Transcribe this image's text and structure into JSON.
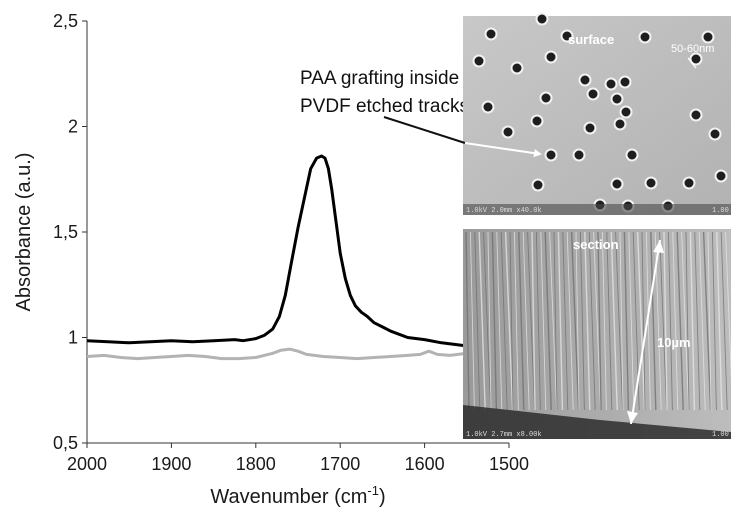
{
  "chart_data": {
    "type": "line",
    "xlabel": "Wavenumber (cm",
    "xlabel_sup": "-1",
    "xlabel_close": ")",
    "ylabel": "Absorbance (a.u.)",
    "xlim": [
      2000,
      1500
    ],
    "ylim": [
      0.5,
      2.5
    ],
    "x_ticks": [
      2000,
      1900,
      1800,
      1700,
      1600,
      1500
    ],
    "x_tick_labels": [
      "2000",
      "1900",
      "1800",
      "1700",
      "1600",
      "1500"
    ],
    "y_ticks": [
      0.5,
      1.0,
      1.5,
      2.0,
      2.5
    ],
    "y_tick_labels": [
      "0,5",
      "1",
      "1,5",
      "2",
      "2,5"
    ],
    "grid": false,
    "series": [
      {
        "color": "#000000",
        "x": [
          2000,
          1975,
          1950,
          1925,
          1900,
          1875,
          1850,
          1825,
          1815,
          1800,
          1790,
          1780,
          1772,
          1765,
          1758,
          1750,
          1742,
          1735,
          1728,
          1722,
          1718,
          1714,
          1710,
          1705,
          1700,
          1694,
          1688,
          1682,
          1675,
          1668,
          1660,
          1650,
          1640,
          1620,
          1600,
          1580,
          1560,
          1540,
          1520,
          1500
        ],
        "y": [
          0.985,
          0.98,
          0.975,
          0.98,
          0.985,
          0.98,
          0.985,
          0.99,
          0.985,
          0.995,
          1.01,
          1.04,
          1.1,
          1.2,
          1.35,
          1.52,
          1.67,
          1.8,
          1.85,
          1.86,
          1.85,
          1.8,
          1.7,
          1.55,
          1.4,
          1.28,
          1.2,
          1.15,
          1.12,
          1.1,
          1.07,
          1.05,
          1.03,
          1.0,
          0.99,
          0.975,
          0.965,
          0.955,
          0.96,
          0.98
        ]
      },
      {
        "color": "#b3b3b3",
        "x": [
          2000,
          1980,
          1960,
          1940,
          1920,
          1900,
          1880,
          1860,
          1840,
          1820,
          1800,
          1780,
          1770,
          1760,
          1750,
          1740,
          1720,
          1700,
          1680,
          1660,
          1640,
          1620,
          1605,
          1595,
          1585,
          1570,
          1550,
          1530,
          1515,
          1500
        ],
        "y": [
          0.91,
          0.915,
          0.905,
          0.9,
          0.905,
          0.91,
          0.915,
          0.91,
          0.9,
          0.9,
          0.905,
          0.925,
          0.94,
          0.945,
          0.935,
          0.92,
          0.91,
          0.905,
          0.9,
          0.905,
          0.91,
          0.915,
          0.92,
          0.935,
          0.92,
          0.915,
          0.925,
          0.93,
          0.935,
          0.94
        ]
      }
    ]
  },
  "annotation": {
    "line1": "PAA grafting  inside",
    "line2": "PVDF etched tracks"
  },
  "sem_images": {
    "surface": {
      "label": "surface",
      "size_label": "50-60nm",
      "info_bar": "1.0kV 2.0mm x40.0k",
      "info_right": "1.00"
    },
    "section": {
      "label": "section",
      "thickness_label": "10µm",
      "info_bar": "1.0kV 2.7mm x8.00k",
      "info_right": "1.00"
    }
  }
}
